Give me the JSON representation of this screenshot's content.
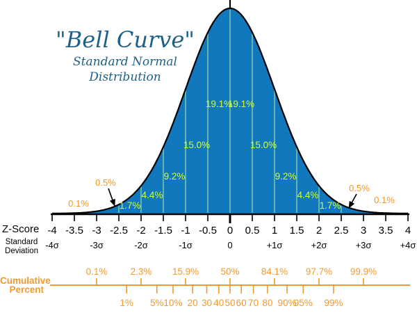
{
  "title": {
    "quote": "\"Bell Curve\"",
    "subtitle1": "Standard Normal",
    "subtitle2": "Distribution"
  },
  "left_labels": {
    "z_score": "Z-Score",
    "standard": "Standard",
    "deviation": "Deviation",
    "cumulative": "Cumulative",
    "percent": "Percent"
  },
  "colors": {
    "curve_fill": "#1278BE",
    "curve_outline": "#000000",
    "divider_line": "#8FD3A1",
    "segment_label": "#CCFF33",
    "tail_label": "#F7941D",
    "cumulative_axis": "#F29A2E",
    "axis": "#000000",
    "title_text": "#1D6189"
  },
  "chart_data": {
    "type": "area",
    "title": "\"Bell Curve\" Standard Normal Distribution",
    "curve": {
      "distribution": "normal",
      "mean": 0,
      "std_dev": 1,
      "z_min": -4,
      "z_max": 4
    },
    "x_axis": {
      "label": "Z-Score",
      "range": [
        -4,
        4
      ],
      "tick_step": 0.5,
      "tick_labels": [
        "-4",
        "-3.5",
        "-3",
        "-2.5",
        "-2",
        "-1.5",
        "-1",
        "-0.5",
        "0",
        "0.5",
        "1",
        "1.5",
        "2",
        "2.5",
        "3",
        "3.5",
        "4"
      ]
    },
    "std_dev_axis": {
      "label": "Standard Deviation",
      "ticks": [
        {
          "z": -4,
          "label": "-4σ"
        },
        {
          "z": -3,
          "label": "-3σ"
        },
        {
          "z": -2,
          "label": "-2σ"
        },
        {
          "z": -1,
          "label": "-1σ"
        },
        {
          "z": 0,
          "label": "0"
        },
        {
          "z": 1,
          "label": "+1σ"
        },
        {
          "z": 2,
          "label": "+2σ"
        },
        {
          "z": 3,
          "label": "+3σ"
        },
        {
          "z": 4,
          "label": "+4σ"
        }
      ]
    },
    "segment_percentages": [
      {
        "label": "19.1%",
        "z_center": -0.25,
        "z_from": -0.5,
        "z_to": 0
      },
      {
        "label": "19.1%",
        "z_center": 0.25,
        "z_from": 0,
        "z_to": 0.5
      },
      {
        "label": "15.0%",
        "z_center": -0.75,
        "z_from": -1,
        "z_to": -0.5
      },
      {
        "label": "15.0%",
        "z_center": 0.75,
        "z_from": 0.5,
        "z_to": 1
      },
      {
        "label": "9.2%",
        "z_center": -1.25,
        "z_from": -1.5,
        "z_to": -1
      },
      {
        "label": "9.2%",
        "z_center": 1.25,
        "z_from": 1,
        "z_to": 1.5
      },
      {
        "label": "4.4%",
        "z_center": -1.75,
        "z_from": -2,
        "z_to": -1.5
      },
      {
        "label": "4.4%",
        "z_center": 1.75,
        "z_from": 1.5,
        "z_to": 2
      },
      {
        "label": "1.7%",
        "z_center": -2.25,
        "z_from": -2.5,
        "z_to": -2
      },
      {
        "label": "1.7%",
        "z_center": 2.25,
        "z_from": 2,
        "z_to": 2.5
      }
    ],
    "tail_percentages": [
      {
        "label": "0.5%",
        "side": "left",
        "z_from": -3,
        "z_to": -2.5,
        "has_arrow": true
      },
      {
        "label": "0.5%",
        "side": "right",
        "z_from": 2.5,
        "z_to": 3,
        "has_arrow": true
      },
      {
        "label": "0.1%",
        "side": "left",
        "z_from": -4,
        "z_to": -3,
        "has_arrow": false
      },
      {
        "label": "0.1%",
        "side": "right",
        "z_from": 3,
        "z_to": 4,
        "has_arrow": false
      }
    ],
    "cumulative_axis": {
      "label": "Cumulative Percent",
      "top_ticks": [
        {
          "z": -3,
          "label": "0.1%"
        },
        {
          "z": -2,
          "label": "2.3%"
        },
        {
          "z": -1,
          "label": "15.9%"
        },
        {
          "z": 0,
          "label": "50%"
        },
        {
          "z": 1,
          "label": "84.1%"
        },
        {
          "z": 2,
          "label": "97.7%"
        },
        {
          "z": 3,
          "label": "99.9%"
        }
      ],
      "bottom_ticks": [
        {
          "z": -2.326,
          "label": "1%"
        },
        {
          "z": -1.645,
          "label": "5%"
        },
        {
          "z": -1.282,
          "label": "10%"
        },
        {
          "z": -0.842,
          "label": "20"
        },
        {
          "z": -0.524,
          "label": "30"
        },
        {
          "z": -0.253,
          "label": "40"
        },
        {
          "z": 0,
          "label": "50"
        },
        {
          "z": 0.253,
          "label": "60"
        },
        {
          "z": 0.524,
          "label": "70"
        },
        {
          "z": 0.842,
          "label": "80"
        },
        {
          "z": 1.282,
          "label": "90%"
        },
        {
          "z": 1.645,
          "label": "95%"
        },
        {
          "z": 2.326,
          "label": "99%"
        }
      ]
    }
  }
}
